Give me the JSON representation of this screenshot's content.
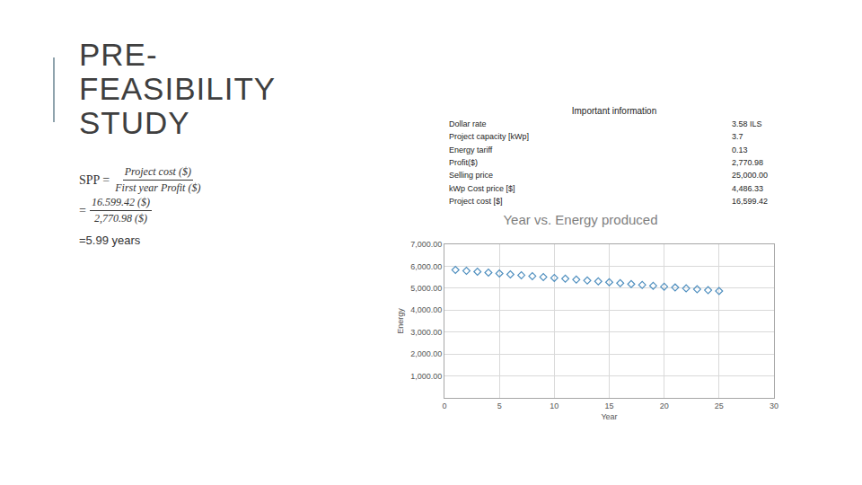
{
  "slide": {
    "title_lines": [
      "PRE-",
      "FEASIBILITY",
      "STUDY"
    ],
    "formula": {
      "lhs": "SPP =",
      "numerator": "Project cost ($)",
      "denominator": "First year Profit ($)",
      "equals": "=",
      "numerator_value": "16.599.42 ($)",
      "denominator_value": "2,770.98 ($)",
      "result": "=5.99 years"
    },
    "info": {
      "title": "Important information",
      "rows": [
        [
          "Dollar rate",
          "3.58 ILS"
        ],
        [
          "Project capacity [kWp]",
          "3.7"
        ],
        [
          "Energy tariff",
          "0.13"
        ],
        [
          "Profit($)",
          "2,770.98"
        ],
        [
          "Selling price",
          "25,000.00"
        ],
        [
          "kWp Cost price [$]",
          "4,486.33"
        ],
        [
          "Project cost [$]",
          "16,599.42"
        ]
      ]
    }
  },
  "chart_data": {
    "type": "scatter",
    "title": "Year vs. Energy produced",
    "x_label": "Year",
    "y_label": "Energy",
    "x": [
      1,
      2,
      3,
      4,
      5,
      6,
      7,
      8,
      9,
      10,
      11,
      12,
      13,
      14,
      15,
      16,
      17,
      18,
      19,
      20,
      21,
      22,
      23,
      24,
      25
    ],
    "values": [
      5830,
      5790,
      5750,
      5710,
      5670,
      5630,
      5590,
      5550,
      5510,
      5470,
      5430,
      5390,
      5350,
      5310,
      5270,
      5230,
      5190,
      5150,
      5110,
      5070,
      5030,
      4990,
      4950,
      4910,
      4870
    ],
    "color": "#4f8fbf",
    "marker": "diamond-open",
    "xlim": [
      0,
      30
    ],
    "xticks": [
      0,
      5,
      10,
      15,
      20,
      25,
      30
    ],
    "ylim": [
      0,
      7000
    ],
    "yticks": [
      {
        "value": 1000,
        "label": "1,000.00"
      },
      {
        "value": 2000,
        "label": "2,000.00"
      },
      {
        "value": 3000,
        "label": "3,000.00"
      },
      {
        "value": 4000,
        "label": "4,000.00"
      },
      {
        "value": 5000,
        "label": "5,000.00"
      },
      {
        "value": 6000,
        "label": "6,000.00"
      },
      {
        "value": 7000,
        "label": "7,000.00"
      }
    ],
    "grid": true
  }
}
